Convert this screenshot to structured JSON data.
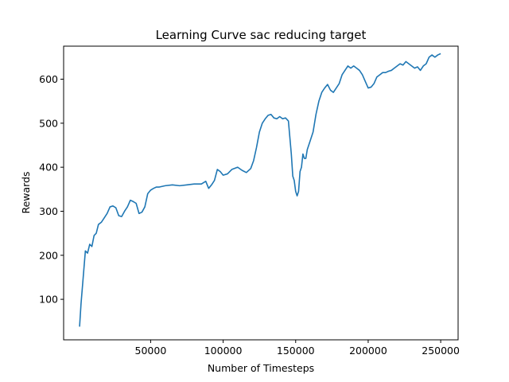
{
  "chart_data": {
    "type": "line",
    "title": "Learning Curve sac reducing target",
    "xlabel": "Number of Timesteps",
    "ylabel": "Rewards",
    "xlim": [
      -10000,
      262000
    ],
    "ylim": [
      8,
      675
    ],
    "xticks": [
      50000,
      100000,
      150000,
      200000,
      250000
    ],
    "xtick_labels": [
      "50000",
      "100000",
      "150000",
      "200000",
      "250000"
    ],
    "yticks": [
      100,
      200,
      300,
      400,
      500,
      600
    ],
    "ytick_labels": [
      "100",
      "200",
      "300",
      "400",
      "500",
      "600"
    ],
    "grid": false,
    "legend": "none",
    "series": [
      {
        "color": "#1f77b4",
        "x": [
          1000,
          2000,
          3500,
          5000,
          6500,
          8000,
          9500,
          11000,
          12500,
          14000,
          16000,
          18000,
          20000,
          22000,
          24000,
          26000,
          28000,
          30000,
          32000,
          34000,
          36000,
          38000,
          40000,
          42000,
          44000,
          46000,
          48000,
          50000,
          52000,
          54000,
          56000,
          60000,
          65000,
          70000,
          75000,
          80000,
          85000,
          88000,
          90000,
          92000,
          94000,
          96000,
          98000,
          100000,
          103000,
          106000,
          110000,
          113000,
          116000,
          119000,
          121000,
          123000,
          125000,
          127000,
          129000,
          131000,
          133000,
          135000,
          137000,
          139000,
          141000,
          143000,
          145000,
          147000,
          148000,
          149000,
          150000,
          151000,
          152000,
          153000,
          154000,
          155000,
          156000,
          157000,
          158000,
          160000,
          162000,
          164000,
          166000,
          168000,
          170000,
          172000,
          174000,
          176000,
          178000,
          180000,
          182000,
          184000,
          186000,
          188000,
          190000,
          192000,
          194000,
          196000,
          198000,
          200000,
          202000,
          204000,
          206000,
          208000,
          210000,
          212000,
          214000,
          216000,
          218000,
          220000,
          222000,
          224000,
          226000,
          228000,
          230000,
          232000,
          234000,
          236000,
          238000,
          240000,
          242000,
          244000,
          246000,
          248000,
          250000
        ],
        "y": [
          38,
          90,
          150,
          210,
          205,
          225,
          220,
          245,
          250,
          270,
          275,
          285,
          295,
          310,
          312,
          308,
          290,
          288,
          300,
          310,
          325,
          322,
          318,
          295,
          298,
          310,
          340,
          348,
          352,
          355,
          355,
          358,
          360,
          358,
          360,
          362,
          362,
          368,
          352,
          360,
          370,
          395,
          390,
          382,
          385,
          395,
          400,
          393,
          388,
          397,
          415,
          445,
          480,
          500,
          510,
          518,
          520,
          512,
          510,
          515,
          510,
          512,
          505,
          430,
          380,
          370,
          345,
          335,
          345,
          390,
          400,
          430,
          420,
          420,
          440,
          460,
          480,
          520,
          550,
          570,
          580,
          588,
          575,
          570,
          580,
          590,
          610,
          620,
          630,
          625,
          630,
          625,
          620,
          610,
          595,
          580,
          582,
          590,
          605,
          610,
          615,
          615,
          618,
          620,
          625,
          630,
          635,
          632,
          640,
          635,
          630,
          625,
          628,
          620,
          630,
          635,
          650,
          655,
          650,
          655,
          658
        ]
      }
    ]
  }
}
